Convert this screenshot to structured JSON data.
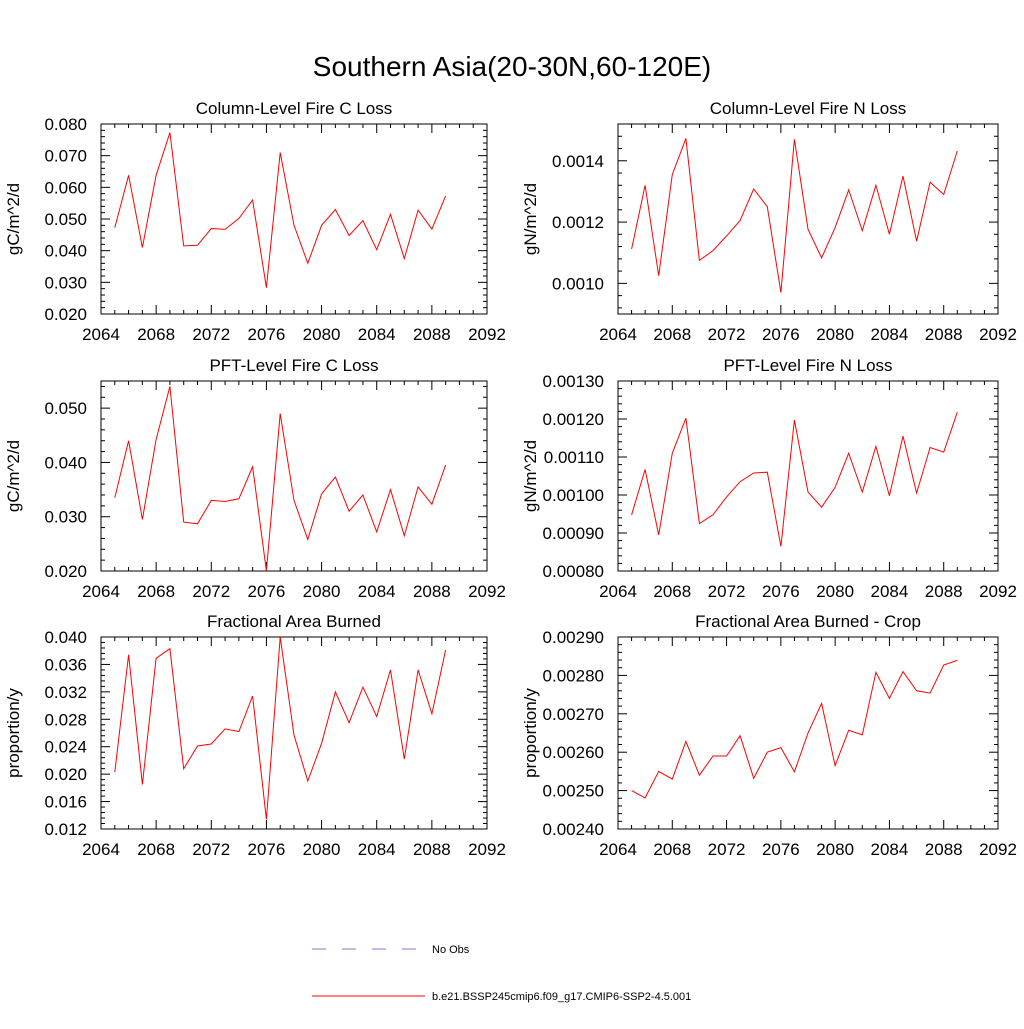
{
  "figure_title": "Southern Asia(20-30N,60-120E)",
  "legend": {
    "obs_label": "No Obs",
    "obs_color": "#7b7bd6",
    "model_label": "b.e21.BSSP245cmip6.f09_g17.CMIP6-SSP2-4.5.001",
    "model_color": "#ff0000"
  },
  "chart_data": [
    {
      "type": "line",
      "title": "Column-Level Fire C Loss",
      "ylabel": "gC/m^2/d",
      "xlim": [
        2064,
        2092
      ],
      "ylim": [
        0.02,
        0.08
      ],
      "xticks": [
        "2064",
        "2068",
        "2072",
        "2076",
        "2080",
        "2084",
        "2088",
        "2092"
      ],
      "yticks": [
        "0.020",
        "0.030",
        "0.040",
        "0.050",
        "0.060",
        "0.070",
        "0.080"
      ],
      "series": [
        {
          "x": [
            2065,
            2066,
            2067,
            2068,
            2069,
            2070,
            2071,
            2072,
            2073,
            2074,
            2075,
            2076,
            2077,
            2078,
            2079,
            2080,
            2081,
            2082,
            2083,
            2084,
            2085,
            2086,
            2087,
            2088,
            2089
          ],
          "values": [
            0.0473,
            0.0638,
            0.041,
            0.0638,
            0.0773,
            0.0415,
            0.0417,
            0.047,
            0.0467,
            0.0502,
            0.056,
            0.0283,
            0.071,
            0.048,
            0.036,
            0.048,
            0.053,
            0.0448,
            0.0495,
            0.0403,
            0.0515,
            0.0375,
            0.0528,
            0.0468,
            0.0573
          ]
        }
      ]
    },
    {
      "type": "line",
      "title": "Column-Level Fire N Loss",
      "ylabel": "gN/m^2/d",
      "xlim": [
        2064,
        2092
      ],
      "ylim": [
        0.0009,
        0.00152
      ],
      "xticks": [
        "2064",
        "2068",
        "2072",
        "2076",
        "2080",
        "2084",
        "2088",
        "2092"
      ],
      "yticks": [
        "0.0010",
        "0.0012",
        "0.0014"
      ],
      "series": [
        {
          "x": [
            2065,
            2066,
            2067,
            2068,
            2069,
            2070,
            2071,
            2072,
            2073,
            2074,
            2075,
            2076,
            2077,
            2078,
            2079,
            2080,
            2081,
            2082,
            2083,
            2084,
            2085,
            2086,
            2087,
            2088,
            2089
          ],
          "values": [
            0.001112,
            0.00132,
            0.001025,
            0.001355,
            0.001473,
            0.001075,
            0.001107,
            0.001155,
            0.001205,
            0.001308,
            0.00125,
            0.00097,
            0.00147,
            0.001177,
            0.001083,
            0.001182,
            0.001305,
            0.001172,
            0.00132,
            0.00116,
            0.00135,
            0.001138,
            0.00133,
            0.00129,
            0.001432
          ]
        }
      ]
    },
    {
      "type": "line",
      "title": "PFT-Level Fire C Loss",
      "ylabel": "gC/m^2/d",
      "xlim": [
        2064,
        2092
      ],
      "ylim": [
        0.02,
        0.055
      ],
      "xticks": [
        "2064",
        "2068",
        "2072",
        "2076",
        "2080",
        "2084",
        "2088",
        "2092"
      ],
      "yticks": [
        "0.020",
        "0.030",
        "0.040",
        "0.050"
      ],
      "series": [
        {
          "x": [
            2065,
            2066,
            2067,
            2068,
            2069,
            2070,
            2071,
            2072,
            2073,
            2074,
            2075,
            2076,
            2077,
            2078,
            2079,
            2080,
            2081,
            2082,
            2083,
            2084,
            2085,
            2086,
            2087,
            2088,
            2089
          ],
          "values": [
            0.0335,
            0.044,
            0.0295,
            0.0442,
            0.054,
            0.029,
            0.0287,
            0.033,
            0.0328,
            0.0333,
            0.0392,
            0.02,
            0.049,
            0.033,
            0.0258,
            0.0342,
            0.0373,
            0.031,
            0.034,
            0.0272,
            0.035,
            0.0265,
            0.0355,
            0.0323,
            0.0395
          ]
        }
      ]
    },
    {
      "type": "line",
      "title": "PFT-Level Fire N Loss",
      "ylabel": "gN/m^2/d",
      "xlim": [
        2064,
        2092
      ],
      "ylim": [
        0.0008,
        0.0013
      ],
      "xticks": [
        "2064",
        "2068",
        "2072",
        "2076",
        "2080",
        "2084",
        "2088",
        "2092"
      ],
      "yticks": [
        "0.00080",
        "0.00090",
        "0.00100",
        "0.00110",
        "0.00120",
        "0.00130"
      ],
      "series": [
        {
          "x": [
            2065,
            2066,
            2067,
            2068,
            2069,
            2070,
            2071,
            2072,
            2073,
            2074,
            2075,
            2076,
            2077,
            2078,
            2079,
            2080,
            2081,
            2082,
            2083,
            2084,
            2085,
            2086,
            2087,
            2088,
            2089
          ],
          "values": [
            0.000948,
            0.001067,
            0.000895,
            0.00111,
            0.001202,
            0.000925,
            0.000948,
            0.000995,
            0.001035,
            0.001058,
            0.00106,
            0.000865,
            0.001197,
            0.001008,
            0.000968,
            0.00102,
            0.00111,
            0.001008,
            0.001128,
            0.000998,
            0.001155,
            0.001005,
            0.001125,
            0.001113,
            0.001218
          ]
        }
      ]
    },
    {
      "type": "line",
      "title": "Fractional Area Burned",
      "ylabel": "proportion/y",
      "xlim": [
        2064,
        2092
      ],
      "ylim": [
        0.012,
        0.04
      ],
      "xticks": [
        "2064",
        "2068",
        "2072",
        "2076",
        "2080",
        "2084",
        "2088",
        "2092"
      ],
      "yticks": [
        "0.012",
        "0.016",
        "0.020",
        "0.024",
        "0.028",
        "0.032",
        "0.036",
        "0.040"
      ],
      "series": [
        {
          "x": [
            2065,
            2066,
            2067,
            2068,
            2069,
            2070,
            2071,
            2072,
            2073,
            2074,
            2075,
            2076,
            2077,
            2078,
            2079,
            2080,
            2081,
            2082,
            2083,
            2084,
            2085,
            2086,
            2087,
            2088,
            2089
          ],
          "values": [
            0.0203,
            0.0374,
            0.0185,
            0.0369,
            0.0383,
            0.0208,
            0.0241,
            0.0244,
            0.0266,
            0.0262,
            0.0314,
            0.0134,
            0.04,
            0.0257,
            0.019,
            0.0245,
            0.032,
            0.0275,
            0.0327,
            0.0284,
            0.0352,
            0.0222,
            0.0352,
            0.0288,
            0.0381
          ]
        }
      ]
    },
    {
      "type": "line",
      "title": "Fractional Area Burned - Crop",
      "ylabel": "proportion/y",
      "xlim": [
        2064,
        2092
      ],
      "ylim": [
        0.0024,
        0.0029
      ],
      "xticks": [
        "2064",
        "2068",
        "2072",
        "2076",
        "2080",
        "2084",
        "2088",
        "2092"
      ],
      "yticks": [
        "0.00240",
        "0.00250",
        "0.00260",
        "0.00270",
        "0.00280",
        "0.00290"
      ],
      "series": [
        {
          "x": [
            2065,
            2066,
            2067,
            2068,
            2069,
            2070,
            2071,
            2072,
            2073,
            2074,
            2075,
            2076,
            2077,
            2078,
            2079,
            2080,
            2081,
            2082,
            2083,
            2084,
            2085,
            2086,
            2087,
            2088,
            2089
          ],
          "values": [
            0.0025,
            0.002481,
            0.00255,
            0.00253,
            0.002628,
            0.00254,
            0.00259,
            0.00259,
            0.002643,
            0.002532,
            0.0026,
            0.002612,
            0.002549,
            0.00265,
            0.002727,
            0.002565,
            0.002657,
            0.002645,
            0.002808,
            0.00274,
            0.00281,
            0.00276,
            0.002754,
            0.002827,
            0.002839
          ]
        }
      ]
    }
  ]
}
